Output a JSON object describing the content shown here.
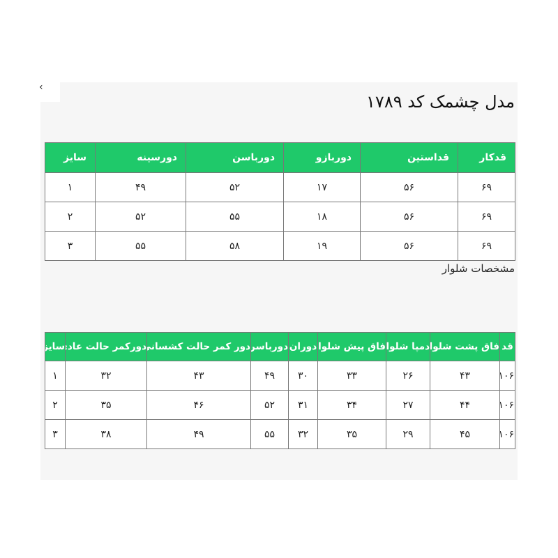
{
  "corner_glyph": "‹",
  "title": "مدل چشمک کد ۱۷۸۹",
  "top_table": {
    "headers": [
      "قدکار",
      "قداستین",
      "دوربازو",
      "دورباسن",
      "دورسینه",
      "سایز"
    ],
    "rows": [
      [
        "۶۹",
        "۵۶",
        "۱۷",
        "۵۲",
        "۴۹",
        "۱"
      ],
      [
        "۶۹",
        "۵۶",
        "۱۸",
        "۵۵",
        "۵۲",
        "۲"
      ],
      [
        "۶۹",
        "۵۶",
        "۱۹",
        "۵۸",
        "۵۵",
        "۳"
      ]
    ]
  },
  "pants_label": "مشخصات شلوار",
  "pants_table": {
    "headers": [
      "قد",
      "فاق پشت شلوار",
      "دمپا شلوار",
      "فاق پیش شلوار",
      "دوران",
      "دورباسن",
      "دور کمر حالت کشسانی",
      "دورکمر حالت عادی",
      "سایز"
    ],
    "rows": [
      [
        "۱۰۶",
        "۴۳",
        "۲۶",
        "۳۳",
        "۳۰",
        "۴۹",
        "۴۳",
        "۳۲",
        "۱"
      ],
      [
        "۱۰۶",
        "۴۴",
        "۲۷",
        "۳۴",
        "۳۱",
        "۵۲",
        "۴۶",
        "۳۵",
        "۲"
      ],
      [
        "۱۰۶",
        "۴۵",
        "۲۹",
        "۳۵",
        "۳۲",
        "۵۵",
        "۴۹",
        "۳۸",
        "۳"
      ]
    ]
  },
  "colors": {
    "header_green": "#1fc96a",
    "panel_bg": "#f6f6f6"
  }
}
